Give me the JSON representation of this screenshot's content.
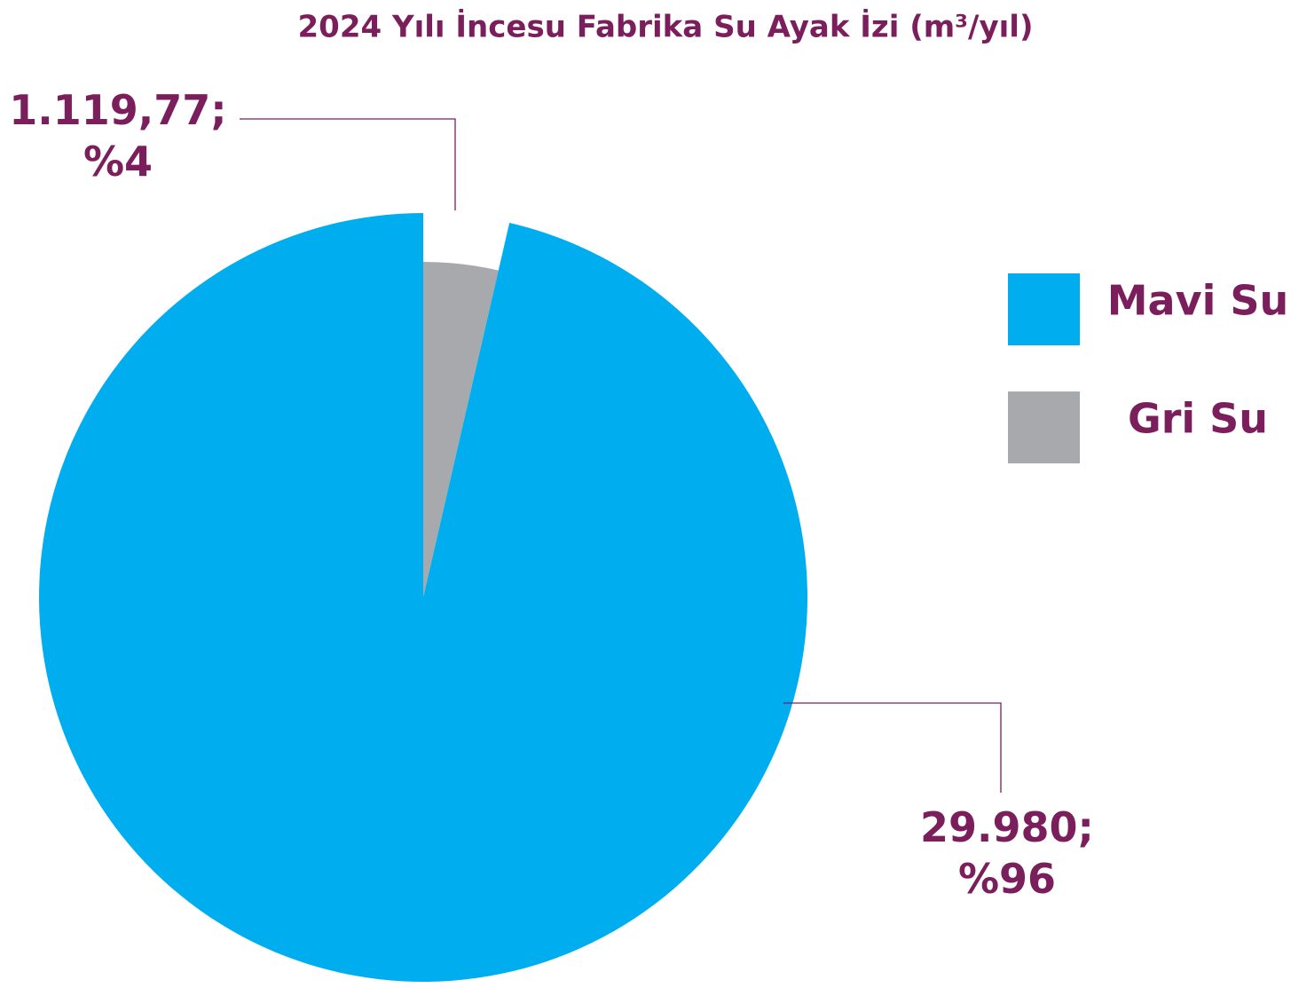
{
  "chart_data": {
    "type": "pie",
    "title": "2024 Yılı İncesu Fabrika Su Ayak İzi (m³/yıl)",
    "categories": [
      "Mavi Su",
      "Gri Su"
    ],
    "values": [
      29980,
      1119.77
    ],
    "value_labels": [
      "29.980; %96",
      "1.119,77; %4"
    ],
    "colors": [
      "#00aeef",
      "#a7a9ac"
    ],
    "legend": "right"
  }
}
